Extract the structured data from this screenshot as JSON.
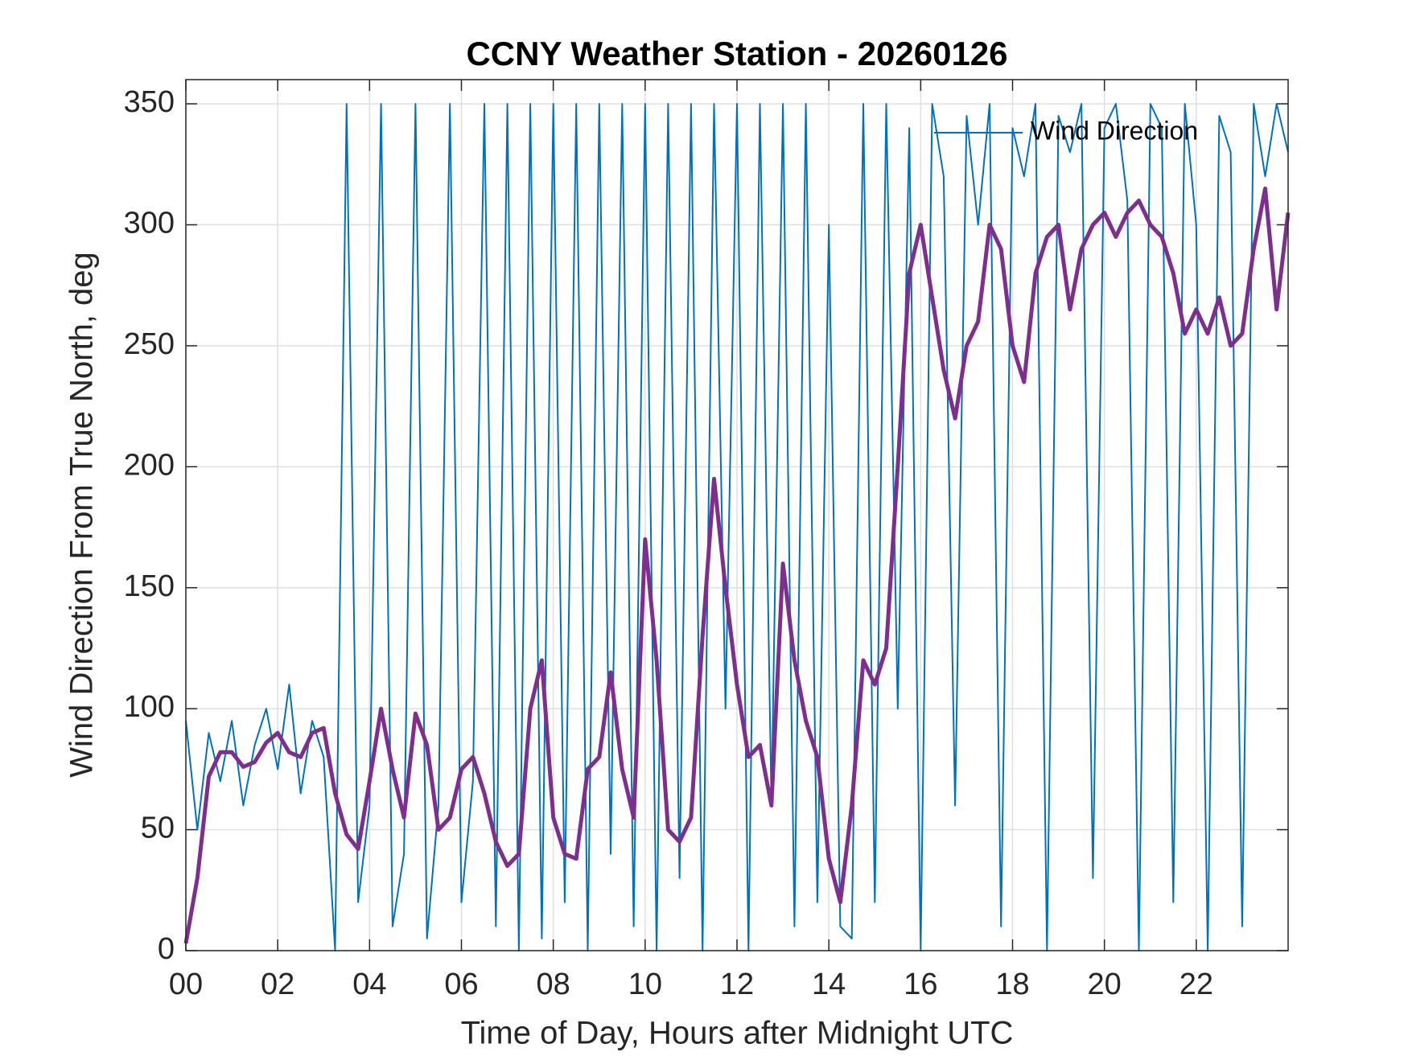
{
  "chart_data": {
    "type": "line",
    "title": "CCNY Weather Station - 20260126",
    "xlabel": "Time of Day, Hours after Midnight UTC",
    "ylabel": "Wind Direction From True North, deg",
    "x": [
      0,
      0.25,
      0.5,
      0.75,
      1,
      1.25,
      1.5,
      1.75,
      2,
      2.25,
      2.5,
      2.75,
      3,
      3.25,
      3.5,
      3.75,
      4,
      4.25,
      4.5,
      4.75,
      5,
      5.25,
      5.5,
      5.75,
      6,
      6.25,
      6.5,
      6.75,
      7,
      7.25,
      7.5,
      7.75,
      8,
      8.25,
      8.5,
      8.75,
      9,
      9.25,
      9.5,
      9.75,
      10,
      10.25,
      10.5,
      10.75,
      11,
      11.25,
      11.5,
      11.75,
      12,
      12.25,
      12.5,
      12.75,
      13,
      13.25,
      13.5,
      13.75,
      14,
      14.25,
      14.5,
      14.75,
      15,
      15.25,
      15.5,
      15.75,
      16,
      16.25,
      16.5,
      16.75,
      17,
      17.25,
      17.5,
      17.75,
      18,
      18.25,
      18.5,
      18.75,
      19,
      19.25,
      19.5,
      19.75,
      20,
      20.25,
      20.5,
      20.75,
      21,
      21.25,
      21.5,
      21.75,
      22,
      22.25,
      22.5,
      22.75,
      23,
      23.25,
      23.5,
      23.75,
      24
    ],
    "series": [
      {
        "name": "Wind Direction",
        "color": "#0072bd",
        "values": [
          95,
          50,
          90,
          70,
          95,
          60,
          85,
          100,
          75,
          110,
          65,
          95,
          80,
          0,
          350,
          20,
          60,
          350,
          10,
          40,
          350,
          5,
          60,
          350,
          20,
          70,
          350,
          10,
          350,
          0,
          350,
          5,
          350,
          20,
          350,
          0,
          350,
          40,
          350,
          10,
          350,
          0,
          350,
          30,
          350,
          0,
          350,
          100,
          350,
          0,
          350,
          60,
          350,
          10,
          350,
          20,
          300,
          10,
          5,
          350,
          20,
          350,
          100,
          340,
          0,
          350,
          320,
          60,
          345,
          300,
          350,
          10,
          340,
          320,
          350,
          0,
          345,
          330,
          350,
          30,
          340,
          350,
          310,
          0,
          350,
          340,
          20,
          350,
          300,
          0,
          345,
          330,
          10,
          350,
          320,
          350,
          330
        ]
      },
      {
        "color": "#7e2f8e",
        "values": [
          3,
          30,
          72,
          82,
          82,
          76,
          78,
          86,
          90,
          82,
          80,
          90,
          92,
          65,
          48,
          42,
          70,
          100,
          75,
          55,
          98,
          85,
          50,
          55,
          75,
          80,
          65,
          45,
          35,
          40,
          100,
          120,
          55,
          40,
          38,
          75,
          80,
          115,
          75,
          55,
          170,
          120,
          50,
          45,
          55,
          130,
          195,
          150,
          110,
          80,
          85,
          60,
          160,
          120,
          95,
          80,
          38,
          20,
          60,
          120,
          110,
          125,
          200,
          280,
          300,
          270,
          240,
          220,
          250,
          260,
          300,
          290,
          250,
          235,
          280,
          295,
          300,
          265,
          290,
          300,
          305,
          295,
          305,
          310,
          300,
          295,
          280,
          255,
          265,
          255,
          270,
          250,
          255,
          290,
          315,
          265,
          305
        ]
      }
    ],
    "xlim": [
      0,
      24
    ],
    "xticks": [
      {
        "value": 0,
        "label": "00"
      },
      {
        "value": 2,
        "label": "02"
      },
      {
        "value": 4,
        "label": "04"
      },
      {
        "value": 6,
        "label": "06"
      },
      {
        "value": 8,
        "label": "08"
      },
      {
        "value": 10,
        "label": "10"
      },
      {
        "value": 12,
        "label": "12"
      },
      {
        "value": 14,
        "label": "14"
      },
      {
        "value": 16,
        "label": "16"
      },
      {
        "value": 18,
        "label": "18"
      },
      {
        "value": 20,
        "label": "20"
      },
      {
        "value": 22,
        "label": "22"
      }
    ],
    "ylim": [
      0,
      360
    ],
    "yticks": [
      0,
      50,
      100,
      150,
      200,
      250,
      300,
      350
    ],
    "grid": true,
    "legend": "upper right"
  }
}
